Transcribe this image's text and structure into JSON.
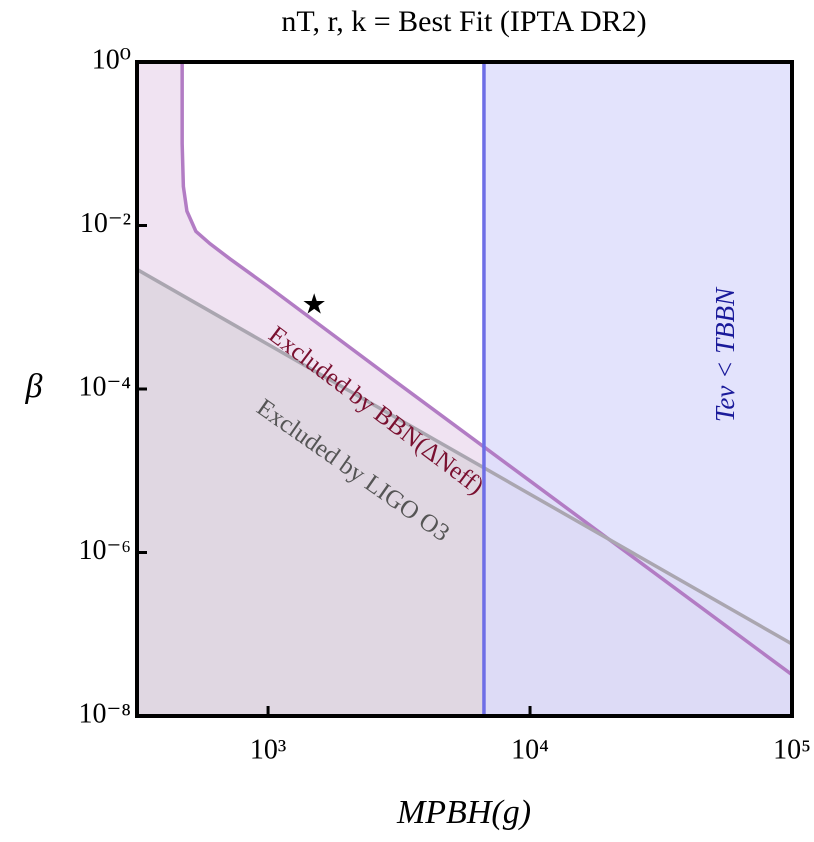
{
  "chart_data": {
    "type": "line",
    "title": "nT, r, k = Best Fit (IPTA DR2)",
    "x_label": "MPBH(g)",
    "y_label": "β",
    "log_x": true,
    "log_y": true,
    "xlim": [
      316,
      100000
    ],
    "ylim": [
      1e-08,
      1
    ],
    "xticks": [
      {
        "value": 1000,
        "label": "10³"
      },
      {
        "value": 10000,
        "label": "10⁴"
      },
      {
        "value": 100000,
        "label": "10⁵"
      }
    ],
    "yticks": [
      {
        "value": 1e-08,
        "label": "10⁻⁸"
      },
      {
        "value": 1e-06,
        "label": "10⁻⁶"
      },
      {
        "value": 0.0001,
        "label": "10⁻⁴"
      },
      {
        "value": 0.01,
        "label": "10⁻²"
      },
      {
        "value": 1,
        "label": "10⁰"
      }
    ],
    "series": [
      {
        "name": "Excluded by BBN(ΔNeff)",
        "color": "#b27cc4",
        "fill": "#ecdcef",
        "text_color": "#7a1030",
        "x": [
          470,
          470,
          475,
          490,
          530,
          600,
          716,
          1000,
          3000,
          10000,
          100000
        ],
        "values": [
          1,
          0.1,
          0.03,
          0.015,
          0.0085,
          0.006,
          0.0039,
          0.0018,
          0.00013,
          7.5e-06,
          3.2e-08
        ]
      },
      {
        "name": "Excluded by LIGO O3",
        "color": "#aaa6b0",
        "fill": "#d9d2dc",
        "text_color": "#555",
        "x": [
          316,
          100000
        ],
        "values": [
          0.0029,
          7.6e-08
        ]
      },
      {
        "name": "Tev < TBBN",
        "color": "#6e6ee6",
        "fill": "#dcdcfb",
        "text_color": "#1a1a9a",
        "x": [
          6670,
          6670
        ],
        "values": [
          1e-08,
          1
        ]
      }
    ],
    "points": {
      "x": [
        1500
      ],
      "values": [
        0.001
      ],
      "marker": "★"
    }
  }
}
